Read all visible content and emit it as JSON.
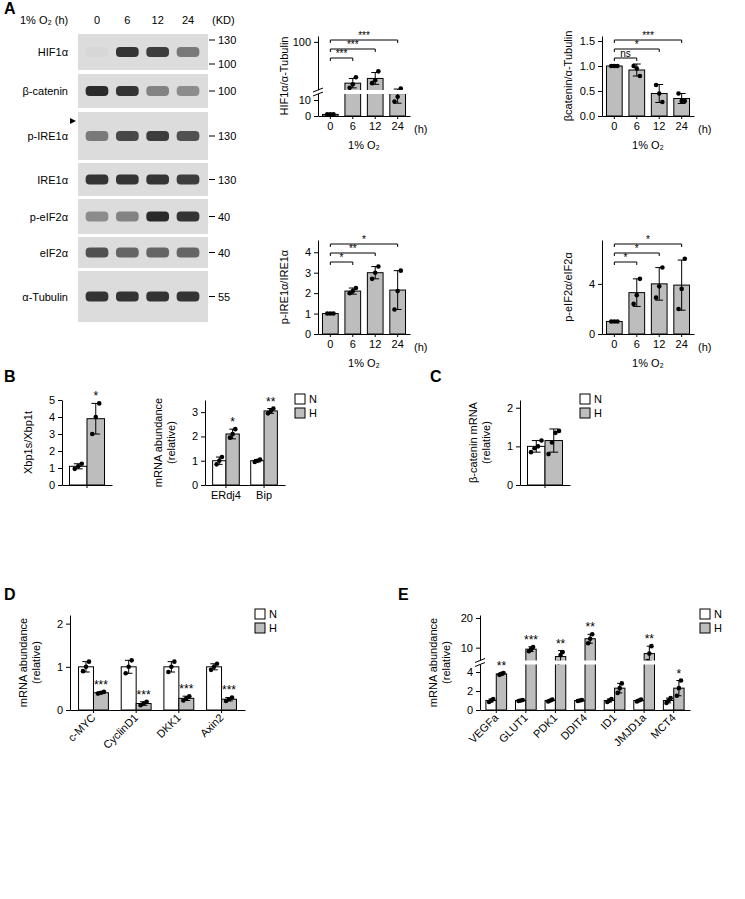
{
  "panels": [
    "A",
    "B",
    "C",
    "D",
    "E"
  ],
  "blot": {
    "header": "1% O₂ (h)",
    "lanes": [
      "0",
      "6",
      "12",
      "24"
    ],
    "unit": "(KD)",
    "rows": [
      {
        "name": "HIF1α",
        "intensity": [
          0.02,
          0.85,
          0.8,
          0.5
        ],
        "markers": [
          130,
          100
        ]
      },
      {
        "name": "β-catenin",
        "intensity": [
          0.9,
          0.85,
          0.45,
          0.4
        ],
        "markers": [
          100
        ]
      },
      {
        "name": "p-IRE1α",
        "intensity": [
          0.5,
          0.75,
          0.8,
          0.7
        ],
        "markers": [
          130
        ]
      },
      {
        "name": "IRE1α",
        "intensity": [
          0.85,
          0.85,
          0.85,
          0.8
        ],
        "markers": [
          130
        ]
      },
      {
        "name": "p-eIF2α",
        "intensity": [
          0.4,
          0.45,
          0.9,
          0.85
        ],
        "markers": [
          40
        ]
      },
      {
        "name": "eIF2α",
        "intensity": [
          0.7,
          0.6,
          0.6,
          0.6
        ],
        "markers": [
          40
        ]
      },
      {
        "name": "α-Tubulin",
        "intensity": [
          0.85,
          0.85,
          0.85,
          0.85
        ],
        "markers": [
          55
        ]
      }
    ]
  },
  "chart_data": [
    {
      "type": "bar",
      "ylabel": "HIF1α/α-Tubulin",
      "xlabel": "1% O₂",
      "x_unit": "(h)",
      "categories": [
        "0",
        "6",
        "12",
        "24"
      ],
      "ylim": [
        0,
        110
      ],
      "ybreak": 15,
      "yticks": [
        0,
        10,
        100
      ],
      "series": [
        {
          "color": "#bdbdbd",
          "values": [
            1,
            30,
            38,
            14
          ],
          "errors": [
            0.1,
            8,
            10,
            6
          ],
          "points": [
            [
              1,
              1,
              1
            ],
            [
              22,
              28,
              40
            ],
            [
              30,
              35,
              50
            ],
            [
              9,
              12,
              21
            ]
          ]
        }
      ],
      "brackets": [
        {
          "from": 0,
          "to": 1,
          "label": "***"
        },
        {
          "from": 0,
          "to": 2,
          "label": "***"
        },
        {
          "from": 0,
          "to": 3,
          "label": "***"
        }
      ]
    },
    {
      "type": "bar",
      "ylabel": "βcatenin/α-Tubulin",
      "xlabel": "1% O₂",
      "x_unit": "(h)",
      "categories": [
        "0",
        "6",
        "12",
        "24"
      ],
      "ylim": [
        0,
        1.6
      ],
      "yticks": [
        {
          "value": 0,
          "label": "0.0"
        },
        {
          "value": 0.5,
          "label": "0.5"
        },
        {
          "value": 1,
          "label": "1.0"
        },
        {
          "value": 1.5,
          "label": "1.5"
        }
      ],
      "series": [
        {
          "color": "#bdbdbd",
          "values": [
            1.0,
            0.92,
            0.45,
            0.35
          ],
          "errors": [
            0.02,
            0.12,
            0.18,
            0.1
          ],
          "points": [
            [
              1,
              1,
              1
            ],
            [
              1.0,
              0.95,
              0.8
            ],
            [
              0.62,
              0.45,
              0.28
            ],
            [
              0.45,
              0.3,
              0.3
            ]
          ]
        }
      ],
      "brackets": [
        {
          "from": 0,
          "to": 1,
          "label": "ns"
        },
        {
          "from": 0,
          "to": 2,
          "label": "*"
        },
        {
          "from": 0,
          "to": 3,
          "label": "***"
        }
      ]
    },
    {
      "type": "bar",
      "ylabel": "p-IRE1α/IRE1α",
      "xlabel": "1% O₂",
      "x_unit": "(h)",
      "categories": [
        "0",
        "6",
        "12",
        "24"
      ],
      "ylim": [
        0,
        4.6
      ],
      "yticks": [
        0,
        1,
        2,
        3,
        4
      ],
      "series": [
        {
          "color": "#bdbdbd",
          "values": [
            1,
            2.1,
            3.0,
            2.15
          ],
          "errors": [
            0.03,
            0.15,
            0.3,
            0.95
          ],
          "points": [
            [
              1,
              1,
              1
            ],
            [
              2.0,
              2.1,
              2.25
            ],
            [
              2.7,
              3.0,
              3.3
            ],
            [
              1.2,
              2.1,
              3.1
            ]
          ]
        }
      ],
      "brackets": [
        {
          "from": 0,
          "to": 1,
          "label": "*"
        },
        {
          "from": 0,
          "to": 2,
          "label": "**"
        },
        {
          "from": 0,
          "to": 3,
          "label": "*"
        }
      ]
    },
    {
      "type": "bar",
      "ylabel": "p-eIF2α/eIF2α",
      "xlabel": "1% O₂",
      "x_unit": "(h)",
      "categories": [
        "0",
        "6",
        "12",
        "24"
      ],
      "ylim": [
        0,
        7.5
      ],
      "yticks": [
        0,
        4
      ],
      "series": [
        {
          "color": "#bdbdbd",
          "values": [
            1,
            3.3,
            4.0,
            3.9
          ],
          "errors": [
            0.05,
            1.1,
            1.3,
            2.0
          ],
          "points": [
            [
              1,
              1,
              1
            ],
            [
              2.4,
              3.1,
              4.4
            ],
            [
              2.9,
              3.8,
              5.3
            ],
            [
              2.0,
              3.6,
              6.0
            ]
          ]
        }
      ],
      "brackets": [
        {
          "from": 0,
          "to": 1,
          "label": "*"
        },
        {
          "from": 0,
          "to": 2,
          "label": "*"
        },
        {
          "from": 0,
          "to": 3,
          "label": "*"
        }
      ]
    },
    {
      "type": "bar",
      "ylabel": "Xbp1s/Xbp1t",
      "categories": [
        null
      ],
      "ylim": [
        0,
        5
      ],
      "yticks": [
        0,
        1,
        2,
        3,
        4,
        5
      ],
      "series": [
        {
          "color": "#ffffff",
          "values": [
            1.1
          ],
          "errors": [
            0.15
          ],
          "points": [
            [
              0.95,
              1.1,
              1.25
            ]
          ]
        },
        {
          "color": "#bdbdbd",
          "values": [
            3.9
          ],
          "errors": [
            0.9
          ],
          "points": [
            [
              3.0,
              4.0,
              4.8
            ]
          ],
          "annotations": [
            "*"
          ]
        }
      ]
    },
    {
      "type": "bar",
      "ylabel": [
        "mRNA abundance",
        "(relative)"
      ],
      "categories": [
        "ERdj4",
        "Bip"
      ],
      "ylim": [
        0,
        3.5
      ],
      "yticks": [
        0,
        1,
        2,
        3
      ],
      "legend": "upper right",
      "series": [
        {
          "name": "N",
          "color": "#ffffff",
          "values": [
            1.0,
            1.0
          ],
          "errors": [
            0.15,
            0.05
          ],
          "points": [
            [
              0.85,
              1.0,
              1.15
            ],
            [
              0.95,
              1.0,
              1.05
            ]
          ]
        },
        {
          "name": "H",
          "color": "#bdbdbd",
          "values": [
            2.1,
            3.05
          ],
          "errors": [
            0.2,
            0.1
          ],
          "points": [
            [
              1.95,
              2.1,
              2.3
            ],
            [
              2.95,
              3.05,
              3.15
            ]
          ],
          "annotations": [
            "*",
            "**"
          ]
        }
      ]
    },
    {
      "type": "bar",
      "ylabel": [
        "β-catenin mRNA",
        "(relative)"
      ],
      "categories": [
        null
      ],
      "ylim": [
        0,
        2.2
      ],
      "yticks": [
        0,
        1,
        2
      ],
      "legend": "upper right",
      "series": [
        {
          "name": "N",
          "color": "#ffffff",
          "values": [
            1.0
          ],
          "errors": [
            0.15
          ],
          "points": [
            [
              0.85,
              0.95,
              1.0,
              1.15
            ]
          ]
        },
        {
          "name": "H",
          "color": "#bdbdbd",
          "values": [
            1.15
          ],
          "errors": [
            0.3
          ],
          "points": [
            [
              0.8,
              1.1,
              1.35,
              1.4
            ]
          ]
        }
      ]
    },
    {
      "type": "bar",
      "ylabel": [
        "mRNA abundance",
        "(relative)"
      ],
      "categories": [
        "c-MYC",
        "CyclinD1",
        "DKK1",
        "Axin2"
      ],
      "ylim": [
        0,
        2.2
      ],
      "yticks": [
        0,
        1,
        2
      ],
      "legend": "upper right",
      "series": [
        {
          "name": "N",
          "color": "#ffffff",
          "values": [
            1,
            1,
            1,
            1
          ],
          "errors": [
            0.12,
            0.15,
            0.12,
            0.07
          ],
          "points": [
            [
              0.9,
              1.0,
              1.12
            ],
            [
              0.85,
              1.0,
              1.15
            ],
            [
              0.88,
              1.0,
              1.12
            ],
            [
              0.93,
              1.0,
              1.07
            ]
          ]
        },
        {
          "name": "H",
          "color": "#bdbdbd",
          "values": [
            0.4,
            0.15,
            0.27,
            0.25
          ],
          "errors": [
            0.02,
            0.04,
            0.05,
            0.04
          ],
          "points": [
            [
              0.38,
              0.4,
              0.42
            ],
            [
              0.11,
              0.15,
              0.19
            ],
            [
              0.22,
              0.27,
              0.32
            ],
            [
              0.21,
              0.25,
              0.29
            ]
          ],
          "annotations": [
            "***",
            "***",
            "***",
            "***"
          ]
        }
      ]
    },
    {
      "type": "bar",
      "ylabel": [
        "mRNA abundance",
        "(relative)"
      ],
      "categories": [
        "VEGFa",
        "GLUT1",
        "PDK1",
        "DDIT4",
        "ID1",
        "JMJD1a",
        "MCT4"
      ],
      "ylim": [
        0,
        21
      ],
      "ybreak": 5,
      "yticks": [
        0,
        2,
        4,
        10,
        20
      ],
      "legend": "upper right",
      "series": [
        {
          "name": "N",
          "color": "#ffffff",
          "values": [
            1,
            1,
            1,
            1,
            1,
            1,
            1
          ],
          "errors": [
            0.15,
            0.05,
            0.1,
            0.05,
            0.15,
            0.1,
            0.25
          ],
          "points": [
            [
              0.85,
              1,
              1.15
            ],
            [
              0.95,
              1,
              1.05
            ],
            [
              0.9,
              1,
              1.1
            ],
            [
              0.95,
              1,
              1.05
            ],
            [
              0.85,
              1,
              1.15
            ],
            [
              0.9,
              1,
              1.1
            ],
            [
              0.75,
              1,
              1.25
            ]
          ]
        },
        {
          "name": "H",
          "color": "#bdbdbd",
          "values": [
            3.8,
            9.5,
            7,
            13,
            2.3,
            8,
            2.3
          ],
          "errors": [
            0.1,
            0.8,
            2,
            1.5,
            0.5,
            2.5,
            0.8
          ],
          "points": [
            [
              3.7,
              3.8,
              3.9
            ],
            [
              8.8,
              9.5,
              10.2
            ],
            [
              5,
              7.5,
              8.5
            ],
            [
              11.5,
              13,
              14.5
            ],
            [
              1.8,
              2.3,
              2.8
            ],
            [
              5.5,
              8,
              10.5
            ],
            [
              1.5,
              2.3,
              3.1
            ]
          ],
          "annotations": [
            "**",
            "***",
            "**",
            "**",
            null,
            "**",
            "*"
          ]
        }
      ]
    }
  ]
}
